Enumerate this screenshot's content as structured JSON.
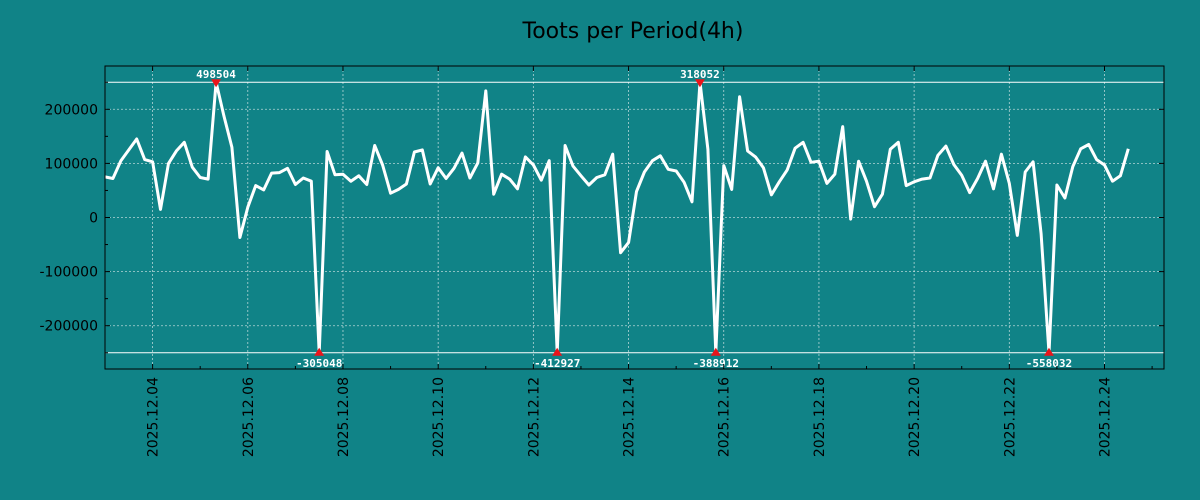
{
  "chart_data": {
    "type": "line",
    "title": "Toots per Period(4h)",
    "xlabel": "",
    "ylabel": "",
    "xlim": [
      0,
      22.25
    ],
    "ylim": [
      -280000,
      280000
    ],
    "yticks": [
      -200000,
      -100000,
      0,
      100000,
      200000
    ],
    "xticks": [
      {
        "value": 1,
        "label": "2025.12.04"
      },
      {
        "value": 3,
        "label": "2025.12.06"
      },
      {
        "value": 5,
        "label": "2025.12.08"
      },
      {
        "value": 7,
        "label": "2025.12.10"
      },
      {
        "value": 9,
        "label": "2025.12.12"
      },
      {
        "value": 11,
        "label": "2025.12.14"
      },
      {
        "value": 13,
        "label": "2025.12.16"
      },
      {
        "value": 15,
        "label": "2025.12.18"
      },
      {
        "value": 17,
        "label": "2025.12.20"
      },
      {
        "value": 19,
        "label": "2025.12.22"
      },
      {
        "value": 21,
        "label": "2025.12.24"
      }
    ],
    "clip_upper": 250000,
    "clip_lower": -250000,
    "series": [
      {
        "name": "Toots",
        "x_start": 0,
        "x_step": 0.16667,
        "values": [
          75000,
          72000,
          105000,
          125000,
          145000,
          107000,
          103000,
          15000,
          100000,
          123000,
          139000,
          93000,
          74000,
          71000,
          250000,
          187000,
          130000,
          -37000,
          19000,
          59000,
          51000,
          82000,
          83000,
          91000,
          61000,
          73000,
          67000,
          -250000,
          122000,
          79000,
          80000,
          67000,
          77000,
          61000,
          133000,
          97000,
          45000,
          52000,
          62000,
          121000,
          125000,
          62000,
          92000,
          72000,
          91000,
          119000,
          73000,
          101000,
          234000,
          43000,
          80000,
          71000,
          53000,
          112000,
          97000,
          69000,
          105000,
          -250000,
          133000,
          95000,
          77000,
          60000,
          74000,
          79000,
          117000,
          -65000,
          -46000,
          48000,
          84000,
          105000,
          114000,
          89000,
          86000,
          65000,
          29000,
          250000,
          126000,
          -250000,
          96000,
          52000,
          223000,
          123000,
          112000,
          92000,
          42000,
          66000,
          88000,
          128000,
          139000,
          102000,
          104000,
          63000,
          80000,
          168000,
          -3000,
          104000,
          67000,
          20000,
          43000,
          126000,
          139000,
          59000,
          66000,
          71000,
          73000,
          115000,
          132000,
          98000,
          78000,
          46000,
          72000,
          104000,
          53000,
          117000,
          63000,
          -33000,
          84000,
          103000,
          -30000,
          -250000,
          60000,
          36000,
          94000,
          127000,
          135000,
          107000,
          97000,
          67000,
          77000,
          127000
        ]
      }
    ],
    "annotations": [
      {
        "x": 2.3333,
        "y": 250000,
        "label": "498504",
        "position": "above"
      },
      {
        "x": 4.5,
        "y": -250000,
        "label": "-305048",
        "position": "below"
      },
      {
        "x": 9.5,
        "y": -250000,
        "label": "-412927",
        "position": "below"
      },
      {
        "x": 12.5,
        "y": 250000,
        "label": "318052",
        "position": "above"
      },
      {
        "x": 12.8333,
        "y": -250000,
        "label": "-388912",
        "position": "below"
      },
      {
        "x": 19.8333,
        "y": -250000,
        "label": "-558032",
        "position": "below"
      }
    ]
  }
}
